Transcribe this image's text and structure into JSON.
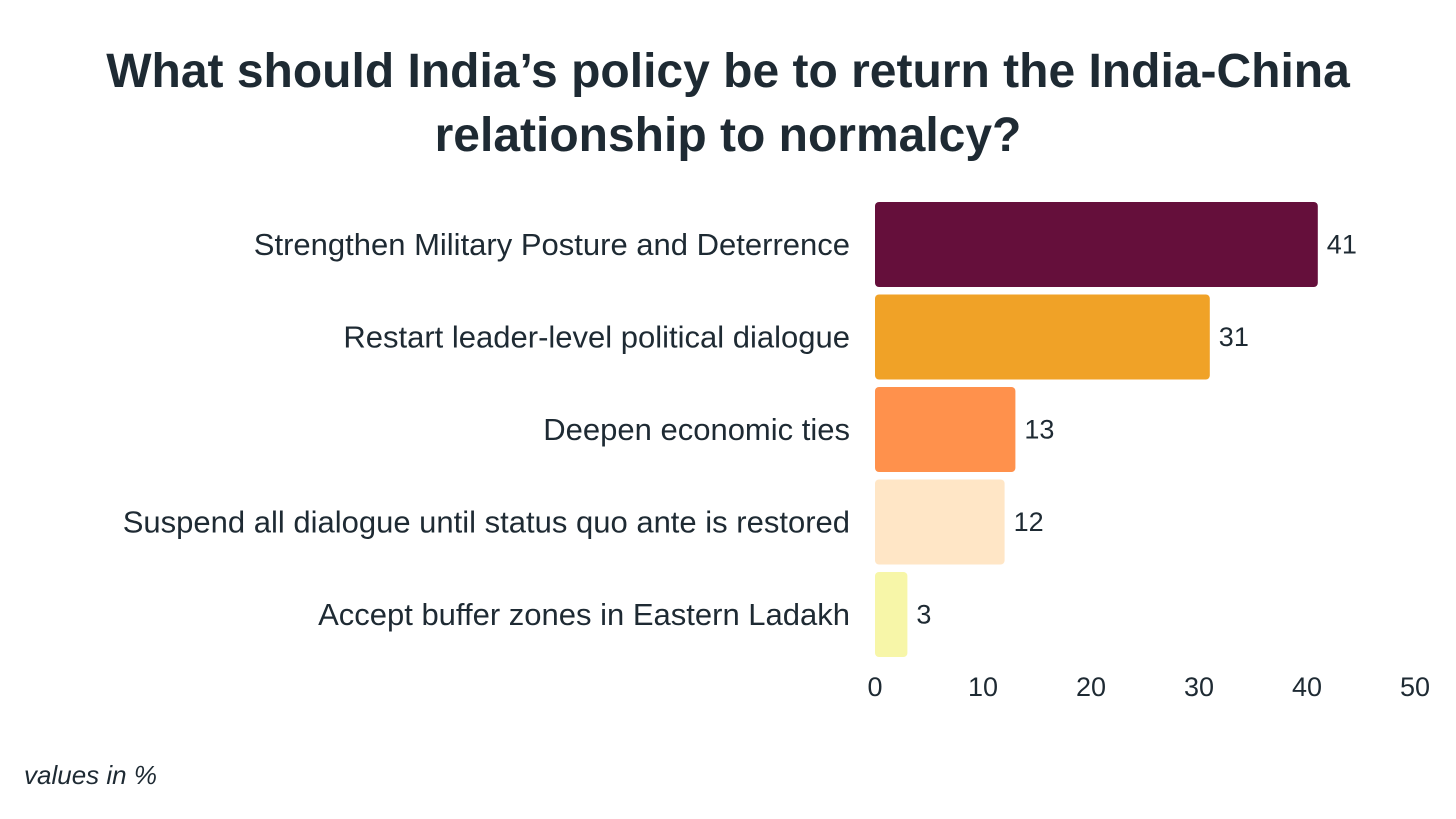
{
  "chart_data": {
    "type": "bar",
    "orientation": "horizontal",
    "title": "What should India’s policy be to return the India-China relationship to normalcy?",
    "xlabel": "",
    "ylabel": "",
    "xlim": [
      0,
      50
    ],
    "ticks": [
      0,
      10,
      20,
      30,
      40,
      50
    ],
    "grid": false,
    "categories": [
      "Strengthen Military Posture and Deterrence",
      "Restart leader-level political dialogue",
      "Deepen economic ties",
      "Suspend all dialogue until status quo ante is restored",
      "Accept buffer zones in Eastern Ladakh"
    ],
    "values": [
      41,
      31,
      13,
      12,
      3
    ],
    "colors": [
      "#650f3b",
      "#f0a227",
      "#ff914c",
      "#ffe6c6",
      "#f7f6a8"
    ]
  },
  "footnote": "values in %"
}
